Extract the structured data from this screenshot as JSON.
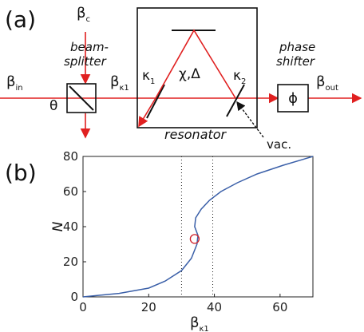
{
  "panel_a": {
    "label": "(a)",
    "beta_c": {
      "base": "β",
      "sub": "c"
    },
    "beam_splitter": [
      "beam-",
      "splitter"
    ],
    "beta_in": {
      "base": "β",
      "sub": "in"
    },
    "theta": "θ",
    "beta_k1": {
      "base": "β",
      "sub": "κ1"
    },
    "kappa_1": {
      "base": "κ",
      "sub": "1"
    },
    "chi_delta": "χ,Δ",
    "kappa_2": {
      "base": "κ",
      "sub": "2"
    },
    "resonator": "resonator",
    "vac": "vac.",
    "phase_shifter": [
      "phase",
      "shifter"
    ],
    "phi": "ϕ",
    "beta_out": {
      "base": "β",
      "sub": "out"
    }
  },
  "panel_b_label": "(b)",
  "chart_data": {
    "type": "line",
    "ylabel": "N",
    "xlabel": {
      "base": "β",
      "sub": "κ1"
    },
    "x": [
      0,
      11,
      20,
      25,
      30,
      33,
      34.7,
      35,
      34,
      34.3,
      36,
      38.5,
      42,
      47,
      53,
      61,
      70
    ],
    "series": [
      {
        "color": "#3a5fa8",
        "values": [
          0,
          2,
          5,
          9,
          15,
          22,
          30,
          35,
          40,
          45,
          50,
          55,
          60,
          65,
          70,
          75,
          80
        ]
      }
    ],
    "xlim": [
      0,
      70
    ],
    "ylim": [
      0,
      80
    ],
    "xticks": [
      0,
      20,
      40,
      60
    ],
    "yticks": [
      0,
      20,
      40,
      60,
      80
    ],
    "vlines": [
      30,
      39.5
    ],
    "marker": {
      "x": 34,
      "y": 33,
      "color": "#d0202a"
    }
  }
}
